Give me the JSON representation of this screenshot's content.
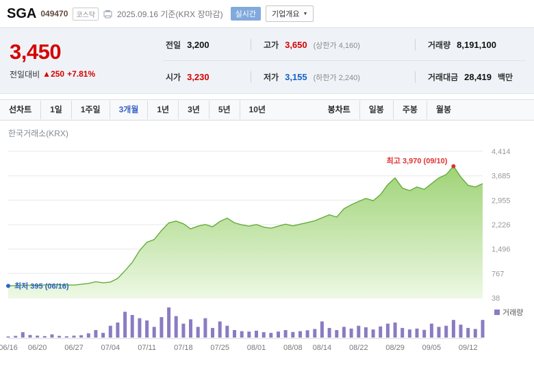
{
  "header": {
    "stock_name": "SGA",
    "stock_code": "049470",
    "market_badge": "코스닥",
    "date_info": "2025.09.16 기준(KRX 장마감)",
    "realtime_badge": "실시간",
    "overview_button": "기업개요"
  },
  "price_panel": {
    "current_price": "3,450",
    "change_label": "전일대비",
    "change_arrow": "▲",
    "change_value": "250",
    "change_percent": "+7.81%",
    "stats": {
      "prev_label": "전일",
      "prev_value": "3,200",
      "high_label": "고가",
      "high_value": "3,650",
      "high_limit": "(상한가 4,160)",
      "volume_label": "거래량",
      "volume_value": "8,191,100",
      "open_label": "시가",
      "open_value": "3,230",
      "low_label": "저가",
      "low_value": "3,155",
      "low_limit": "(하한가 2,240)",
      "amount_label": "거래대금",
      "amount_value": "28,419",
      "amount_unit": "백만"
    }
  },
  "tabs": {
    "line_group_label": "선차트",
    "line_tabs": [
      "1일",
      "1주일",
      "3개월",
      "1년",
      "3년",
      "5년",
      "10년"
    ],
    "active_tab": "3개월",
    "candle_group_label": "봉차트",
    "candle_tabs": [
      "일봉",
      "주봉",
      "월봉"
    ]
  },
  "colors": {
    "up_red": "#d60000",
    "down_blue": "#1561c6",
    "active_tab_blue": "#3c63c8",
    "area_line_green": "#63ac39",
    "area_fill_green": "#92cd64",
    "volume_purple": "#8a7cc2",
    "annotation_red": "#e03131",
    "annotation_blue": "#2e62c9"
  },
  "chart_data": {
    "type": "area",
    "title": "한국거래소(KRX)",
    "ylim": [
      38,
      4414
    ],
    "y_ticks": [
      4414,
      3685,
      2955,
      2226,
      1496,
      767,
      38
    ],
    "y_tick_labels": [
      "4,414",
      "3,685",
      "2,955",
      "2,226",
      "1,496",
      "767",
      "38"
    ],
    "x_labels": [
      "06/16",
      "06/20",
      "06/27",
      "07/04",
      "07/11",
      "07/18",
      "07/25",
      "08/01",
      "08/08",
      "08/14",
      "08/22",
      "08/29",
      "09/05",
      "09/12"
    ],
    "x_label_idx": [
      0,
      4,
      9,
      14,
      19,
      24,
      29,
      34,
      39,
      43,
      48,
      53,
      58,
      63
    ],
    "prices": [
      395,
      405,
      420,
      415,
      410,
      425,
      440,
      430,
      425,
      420,
      445,
      470,
      520,
      490,
      510,
      620,
      850,
      1100,
      1450,
      1700,
      1780,
      2050,
      2280,
      2330,
      2250,
      2100,
      2180,
      2230,
      2160,
      2320,
      2420,
      2280,
      2220,
      2180,
      2230,
      2150,
      2120,
      2180,
      2240,
      2190,
      2240,
      2290,
      2340,
      2430,
      2520,
      2450,
      2700,
      2820,
      2920,
      3010,
      2940,
      3120,
      3420,
      3620,
      3320,
      3240,
      3350,
      3280,
      3450,
      3620,
      3720,
      3970,
      3650,
      3400,
      3350,
      3450
    ],
    "volumes": [
      0.5,
      0.8,
      2.5,
      1.2,
      0.9,
      0.7,
      1.5,
      0.8,
      0.6,
      0.9,
      1.1,
      2.0,
      3.5,
      2.2,
      5.5,
      7.0,
      12.0,
      10.5,
      9.0,
      8.0,
      5.0,
      9.5,
      14.0,
      10.0,
      6.5,
      8.5,
      5.0,
      9.0,
      4.5,
      7.5,
      5.5,
      3.5,
      3.0,
      2.8,
      3.2,
      2.5,
      2.2,
      2.8,
      3.5,
      2.6,
      3.0,
      3.4,
      4.0,
      7.5,
      4.5,
      3.5,
      5.0,
      4.2,
      5.5,
      4.8,
      3.8,
      5.2,
      6.5,
      7.0,
      4.5,
      3.8,
      4.2,
      3.6,
      6.5,
      5.0,
      5.5,
      8.2,
      6.0,
      4.5,
      4.0,
      8.2
    ],
    "max_annotation": {
      "label": "최고 3,970 (09/10)",
      "value": 3970,
      "index": 61
    },
    "min_annotation": {
      "label": "최저 395 (06/16)",
      "value": 395,
      "index": 0
    },
    "volume_legend": "거래량"
  }
}
